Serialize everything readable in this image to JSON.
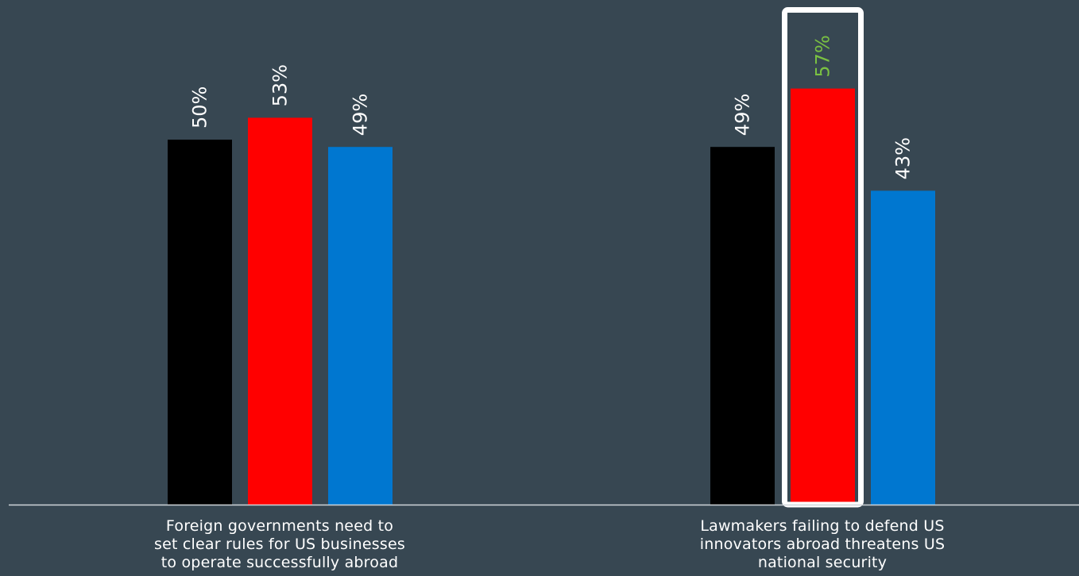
{
  "chart_data": {
    "type": "bar",
    "categories": [
      "Foreign governments need to set clear rules for US businesses to operate successfully abroad",
      "Lawmakers failing to defend US innovators abroad threatens US national security"
    ],
    "category_lines": [
      [
        "Foreign governments need to",
        "set clear rules for US businesses",
        "to operate successfully abroad"
      ],
      [
        "Lawmakers failing to defend US",
        "innovators abroad threatens US",
        "national security"
      ]
    ],
    "series": [
      {
        "values": [
          50,
          49
        ],
        "labels": [
          "50%",
          "49%"
        ],
        "color": "#000000"
      },
      {
        "values": [
          53,
          57
        ],
        "labels": [
          "53%",
          "57%"
        ],
        "color": "#ff0000"
      },
      {
        "values": [
          49,
          43
        ],
        "labels": [
          "49%",
          "43%"
        ],
        "color": "#0077d0"
      }
    ],
    "ylim": [
      0,
      100
    ],
    "grid": false,
    "highlight": {
      "series": 1,
      "category": 1,
      "outline_color": "#ffffff",
      "label_color": "#7ac142"
    },
    "label_color": "#ffffff",
    "axis_color": "#d0d5d9",
    "background": "#374752"
  }
}
